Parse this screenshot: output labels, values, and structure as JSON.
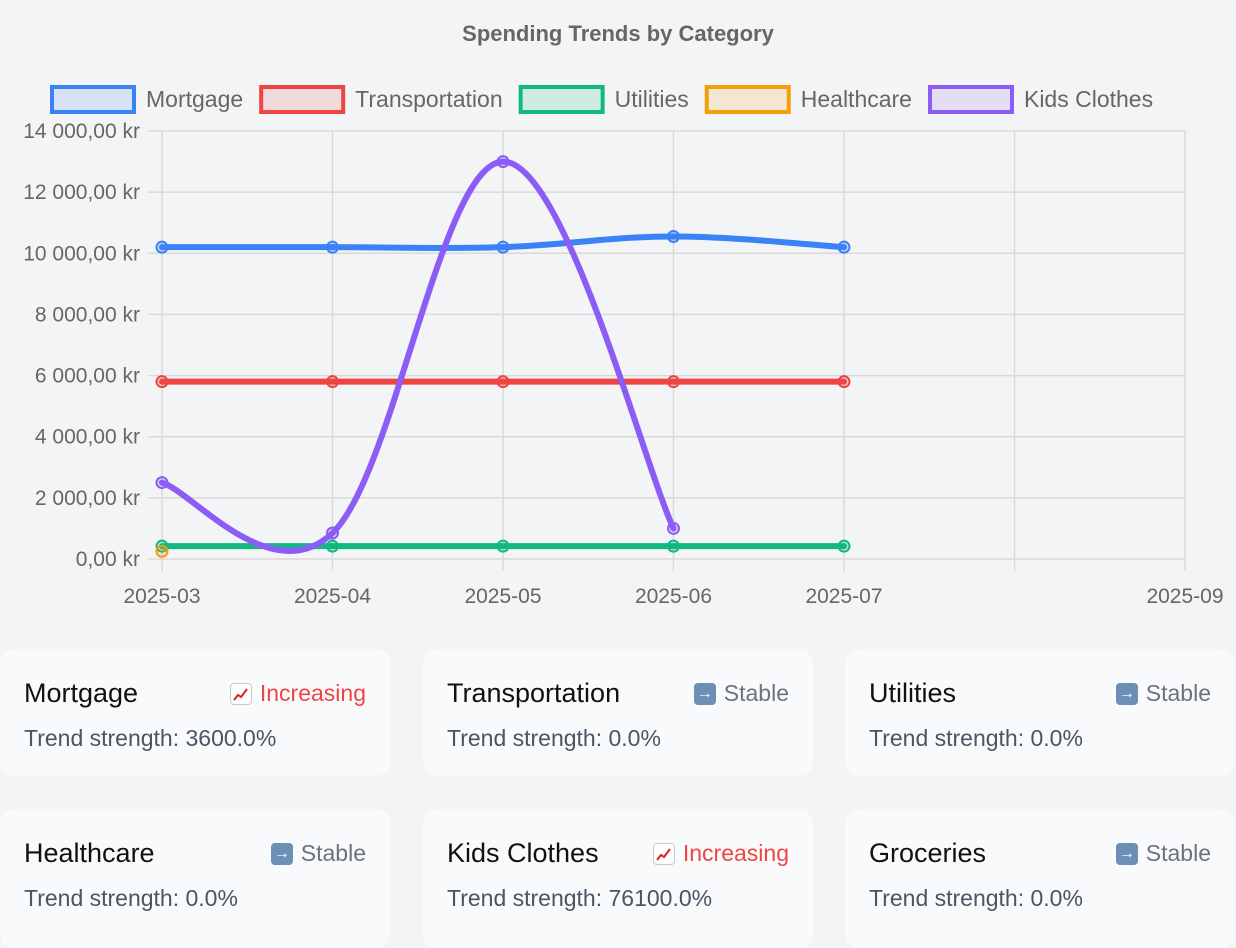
{
  "chart_data": {
    "type": "line",
    "title": "Spending Trends by Category",
    "x_ticks": [
      "2025-03",
      "2025-04",
      "2025-05",
      "2025-06",
      "2025-07",
      "2025-09"
    ],
    "y_ticks": [
      "0,00 kr",
      "2 000,00 kr",
      "4 000,00 kr",
      "6 000,00 kr",
      "8 000,00 kr",
      "10 000,00 kr",
      "12 000,00 kr",
      "14 000,00 kr"
    ],
    "ylim": [
      0,
      14000
    ],
    "grid": true,
    "legend_position": "top",
    "series": [
      {
        "name": "Mortgage",
        "color": "#3b82f6",
        "x": [
          "2025-03",
          "2025-04",
          "2025-05",
          "2025-06",
          "2025-07"
        ],
        "values": [
          10200,
          10200,
          10200,
          10550,
          10200
        ]
      },
      {
        "name": "Transportation",
        "color": "#ef4444",
        "x": [
          "2025-03",
          "2025-04",
          "2025-05",
          "2025-06",
          "2025-07"
        ],
        "values": [
          5800,
          5800,
          5800,
          5800,
          5800
        ]
      },
      {
        "name": "Utilities",
        "color": "#10b981",
        "x": [
          "2025-03",
          "2025-04",
          "2025-05",
          "2025-06",
          "2025-07"
        ],
        "values": [
          420,
          420,
          420,
          420,
          420
        ]
      },
      {
        "name": "Healthcare",
        "color": "#f59e0b",
        "x": [
          "2025-03"
        ],
        "values": [
          250
        ]
      },
      {
        "name": "Kids Clothes",
        "color": "#8b5cf6",
        "x": [
          "2025-03",
          "2025-04",
          "2025-05",
          "2025-06"
        ],
        "values": [
          2500,
          850,
          13000,
          1000
        ]
      }
    ]
  },
  "cards": [
    {
      "name": "Mortgage",
      "trend": "Increasing",
      "direction": "up",
      "trend_color": "#ef4444",
      "strength": "Trend strength: 3600.0%"
    },
    {
      "name": "Transportation",
      "trend": "Stable",
      "direction": "flat",
      "trend_color": "#6b7280",
      "strength": "Trend strength: 0.0%"
    },
    {
      "name": "Utilities",
      "trend": "Stable",
      "direction": "flat",
      "trend_color": "#6b7280",
      "strength": "Trend strength: 0.0%"
    },
    {
      "name": "Healthcare",
      "trend": "Stable",
      "direction": "flat",
      "trend_color": "#6b7280",
      "strength": "Trend strength: 0.0%"
    },
    {
      "name": "Kids Clothes",
      "trend": "Increasing",
      "direction": "up",
      "trend_color": "#ef4444",
      "strength": "Trend strength: 76100.0%"
    },
    {
      "name": "Groceries",
      "trend": "Stable",
      "direction": "flat",
      "trend_color": "#6b7280",
      "strength": "Trend strength: 0.0%"
    }
  ]
}
